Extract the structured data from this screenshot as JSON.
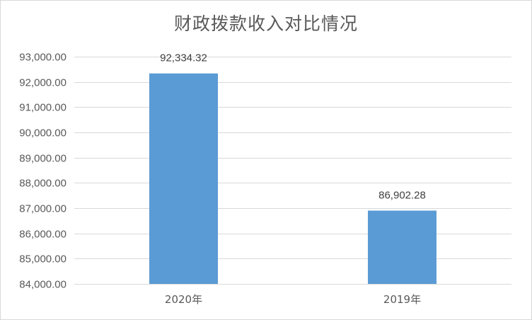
{
  "chart_data": {
    "type": "bar",
    "title": "财政拨款收入对比情况",
    "categories": [
      "2020年",
      "2019年"
    ],
    "values": [
      92334.32,
      86902.28
    ],
    "value_labels": [
      "92,334.32",
      "86,902.28"
    ],
    "ylim": [
      84000,
      93000
    ],
    "yticks": [
      84000,
      85000,
      86000,
      87000,
      88000,
      89000,
      90000,
      91000,
      92000,
      93000
    ],
    "ytick_labels": [
      "84,000.00",
      "85,000.00",
      "86,000.00",
      "87,000.00",
      "88,000.00",
      "89,000.00",
      "90,000.00",
      "91,000.00",
      "92,000.00",
      "93,000.00"
    ],
    "grid": true,
    "legend": "none",
    "bar_color": "#5b9bd5",
    "grid_color": "#d9d9d9"
  }
}
